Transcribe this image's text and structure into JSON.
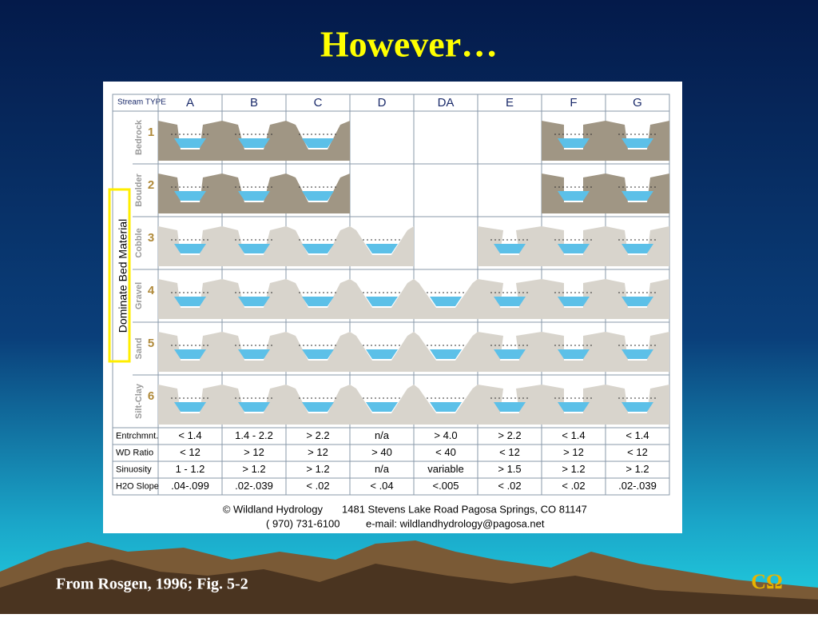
{
  "slide": {
    "title": "However…",
    "caption": "From Rosgen, 1996; Fig. 5-2",
    "logo": "CΩ"
  },
  "table": {
    "corner": "Stream TYPE",
    "side_label": "Dominate Bed Material",
    "columns": [
      "A",
      "B",
      "C",
      "D",
      "DA",
      "E",
      "F",
      "G"
    ],
    "materials": [
      {
        "number": "1",
        "name": "Bedrock"
      },
      {
        "number": "2",
        "name": "Boulder"
      },
      {
        "number": "3",
        "name": "Cobble"
      },
      {
        "number": "4",
        "name": "Gravel"
      },
      {
        "number": "5",
        "name": "Sand"
      },
      {
        "number": "6",
        "name": "Silt-Clay"
      }
    ],
    "criteria": [
      {
        "label": "Entrchmnt.",
        "values": [
          "< 1.4",
          "1.4 - 2.2",
          "> 2.2",
          "n/a",
          "> 4.0",
          "> 2.2",
          "< 1.4",
          "< 1.4"
        ]
      },
      {
        "label": "WD Ratio",
        "values": [
          "< 12",
          "> 12",
          "> 12",
          "> 40",
          "< 40",
          "< 12",
          "> 12",
          "< 12"
        ]
      },
      {
        "label": "Sinuosity",
        "values": [
          "1 - 1.2",
          "> 1.2",
          "> 1.2",
          "n/a",
          "variable",
          "> 1.5",
          "> 1.2",
          "> 1.2"
        ]
      },
      {
        "label": "H2O Slope",
        "values": [
          ".04-.099",
          ".02-.039",
          "< .02",
          "< .04",
          "<.005",
          "< .02",
          "< .02",
          ".02-.039"
        ]
      }
    ]
  },
  "credits": {
    "owner": "© Wildland Hydrology",
    "address": "1481 Stevens Lake Road Pagosa Springs, CO 81147",
    "phone": "( 970) 731-6100",
    "email": "e-mail: wildlandhydrology@pagosa.net"
  }
}
